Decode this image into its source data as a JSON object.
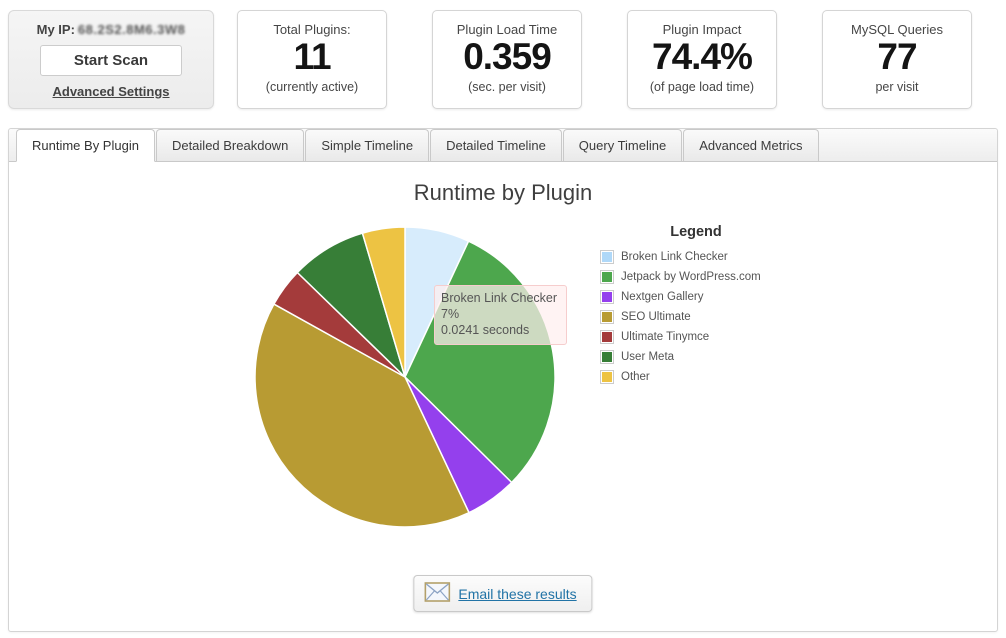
{
  "scan_box": {
    "my_ip_label": "My IP:",
    "my_ip_value": "68.2S2.8M6.3W8",
    "start_scan_label": "Start Scan",
    "advanced_settings_label": "Advanced Settings"
  },
  "stats": [
    {
      "title": "Total Plugins:",
      "value": "11",
      "subtitle": "(currently active)"
    },
    {
      "title": "Plugin Load Time",
      "value": "0.359",
      "subtitle": "(sec. per visit)"
    },
    {
      "title": "Plugin Impact",
      "value": "74.4%",
      "subtitle": "(of page load time)"
    },
    {
      "title": "MySQL Queries",
      "value": "77",
      "subtitle": "per visit"
    }
  ],
  "tabs": [
    {
      "label": "Runtime By Plugin",
      "active": true
    },
    {
      "label": "Detailed Breakdown",
      "active": false
    },
    {
      "label": "Simple Timeline",
      "active": false
    },
    {
      "label": "Detailed Timeline",
      "active": false
    },
    {
      "label": "Query Timeline",
      "active": false
    },
    {
      "label": "Advanced Metrics",
      "active": false
    }
  ],
  "chart_data": {
    "type": "pie",
    "title": "Runtime by Plugin",
    "legend_title": "Legend",
    "legend_position": "right",
    "series": [
      {
        "label": "Broken Link Checker",
        "percent": 7.0,
        "color": "#AFD8F8",
        "highlighted": true
      },
      {
        "label": "Jetpack by WordPress.com",
        "percent": 30.6,
        "color": "#4DA74D",
        "highlighted": false
      },
      {
        "label": "Nextgen Gallery",
        "percent": 5.6,
        "color": "#9440ED",
        "highlighted": false
      },
      {
        "label": "SEO Ultimate",
        "percent": 40.3,
        "color": "#B89B33",
        "highlighted": false
      },
      {
        "label": "Ultimate Tinymce",
        "percent": 4.2,
        "color": "#A43B3B",
        "highlighted": false
      },
      {
        "label": "User Meta",
        "percent": 8.2,
        "color": "#377E37",
        "highlighted": false
      },
      {
        "label": "Other",
        "percent": 4.6,
        "color": "#EDC343",
        "highlighted": false
      }
    ],
    "tooltip": {
      "label": "Broken Link Checker",
      "percent": "7%",
      "seconds": "0.0241 seconds"
    }
  },
  "footer": {
    "email_button_label": "Email these results"
  },
  "colors": {
    "link_blue": "#2173A6"
  }
}
